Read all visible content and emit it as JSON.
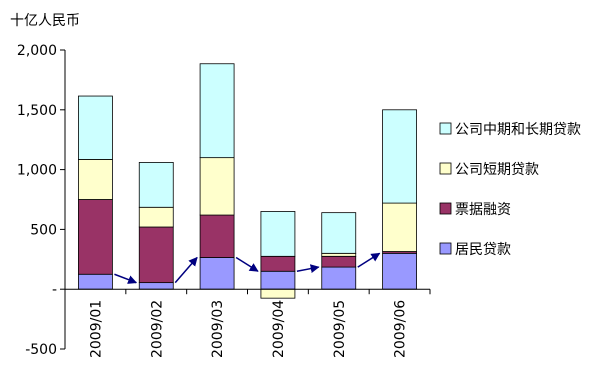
{
  "chart_data": {
    "type": "bar",
    "stacked": true,
    "ylabel": "十亿人民币",
    "ylim": [
      -500,
      2000
    ],
    "yticks": [
      -500,
      0,
      500,
      1000,
      1500,
      2000
    ],
    "ytick_labels": [
      "-500",
      "-",
      "500",
      "1,000",
      "1,500",
      "2,000"
    ],
    "categories": [
      "2009/01",
      "2009/02",
      "2009/03",
      "2009/04",
      "2009/05",
      "2009/06"
    ],
    "series": [
      {
        "name": "居民贷款",
        "color": "#9999FF",
        "values": [
          125,
          55,
          265,
          150,
          185,
          300
        ]
      },
      {
        "name": "票据融资",
        "color": "#993366",
        "values": [
          625,
          465,
          355,
          125,
          90,
          15
        ]
      },
      {
        "name": "公司短期贷款",
        "color": "#FFFFCC",
        "values": [
          335,
          165,
          480,
          -75,
          25,
          405
        ]
      },
      {
        "name": "公司中期和长期贷款",
        "color": "#CCFFFF",
        "values": [
          530,
          375,
          785,
          375,
          340,
          780
        ]
      }
    ],
    "legend_position": "right",
    "legend_order": [
      3,
      2,
      1,
      0
    ],
    "annotations": "arrows connecting household loan levels between consecutive months"
  }
}
